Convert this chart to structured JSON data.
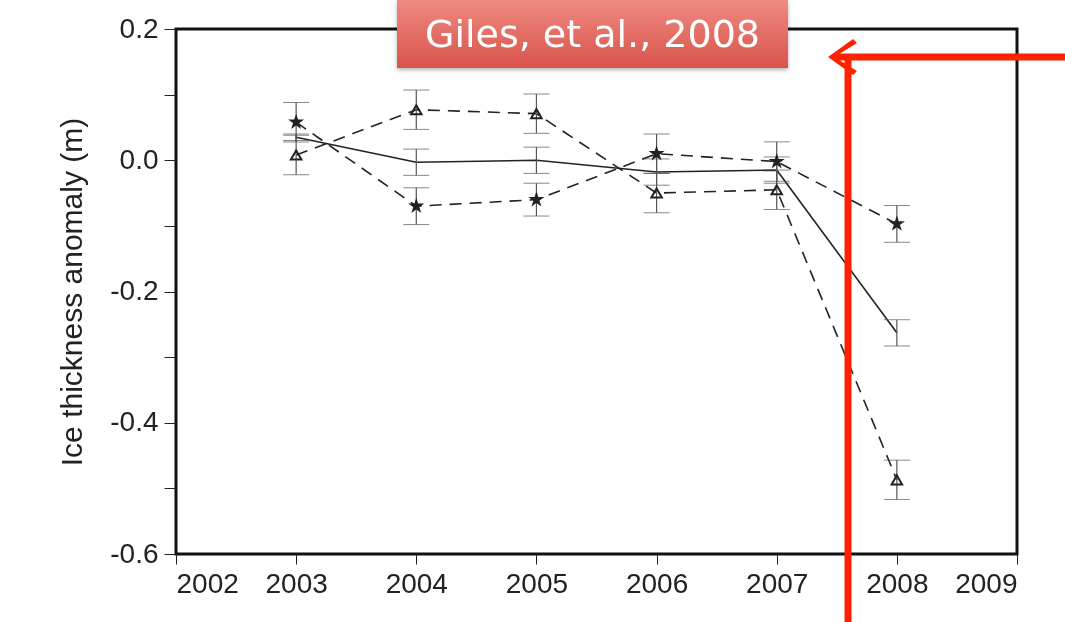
{
  "chart_data": {
    "type": "line",
    "ylabel": "Ice thickness anomaly (m)",
    "x": [
      2003,
      2004,
      2005,
      2006,
      2007,
      2008
    ],
    "series": [
      {
        "color": "#222222",
        "line_style": "solid",
        "marker": "none",
        "values": [
          0.035,
          -0.003,
          0.0,
          -0.018,
          -0.015,
          -0.263
        ],
        "errors": [
          0.005,
          0.02,
          0.02,
          0.02,
          0.02,
          0.02
        ]
      },
      {
        "color": "#222222",
        "line_style": "dashed",
        "marker": "star",
        "values": [
          0.058,
          -0.07,
          -0.06,
          0.01,
          -0.002,
          -0.097
        ],
        "errors": [
          0.03,
          0.028,
          0.025,
          0.03,
          0.03,
          0.028
        ]
      },
      {
        "color": "#222222",
        "line_style": "dashed",
        "marker": "triangle",
        "values": [
          0.008,
          0.077,
          0.071,
          -0.05,
          -0.045,
          -0.487
        ],
        "errors": [
          0.03,
          0.03,
          0.03,
          0.03,
          0.03,
          0.03
        ]
      }
    ],
    "xlim": [
      2002,
      2009
    ],
    "xticks": [
      2002,
      2003,
      2004,
      2005,
      2006,
      2007,
      2008,
      2009
    ],
    "ylim": [
      -0.6,
      0.2
    ],
    "yticks": [
      {
        "value": -0.6,
        "label": "-0.6"
      },
      {
        "value": -0.5,
        "label": null
      },
      {
        "value": -0.4,
        "label": "-0.4"
      },
      {
        "value": -0.3,
        "label": null
      },
      {
        "value": -0.2,
        "label": "-0.2"
      },
      {
        "value": -0.1,
        "label": null
      },
      {
        "value": 0,
        "label": "0.0"
      },
      {
        "value": 0.1,
        "label": null
      },
      {
        "value": 0.2,
        "label": "0.2"
      }
    ],
    "grid": false,
    "annotations": [
      "Giles, et al., 2008"
    ]
  }
}
